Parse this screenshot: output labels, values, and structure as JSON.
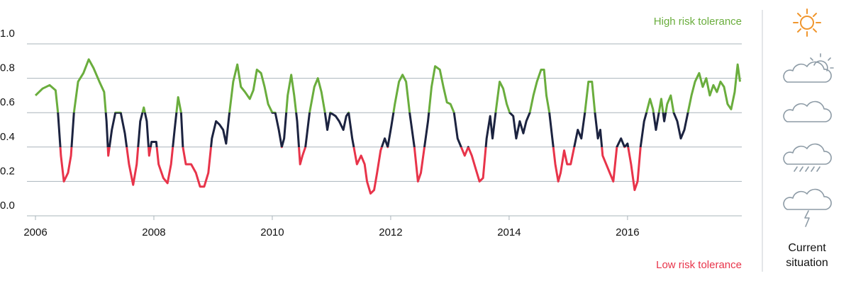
{
  "chart_data": {
    "type": "line",
    "x": [
      2006,
      2006.12,
      2006.24,
      2006.34,
      2006.38,
      2006.43,
      2006.48,
      2006.55,
      2006.6,
      2006.65,
      2006.72,
      2006.81,
      2006.9,
      2006.98,
      2007.08,
      2007.16,
      2007.2,
      2007.23,
      2007.29,
      2007.35,
      2007.44,
      2007.51,
      2007.58,
      2007.65,
      2007.71,
      2007.77,
      2007.83,
      2007.88,
      2007.92,
      2007.96,
      2008.04,
      2008.08,
      2008.16,
      2008.23,
      2008.29,
      2008.35,
      2008.41,
      2008.46,
      2008.49,
      2008.54,
      2008.63,
      2008.71,
      2008.78,
      2008.85,
      2008.92,
      2008.98,
      2009.05,
      2009.11,
      2009.17,
      2009.22,
      2009.27,
      2009.34,
      2009.41,
      2009.47,
      2009.54,
      2009.62,
      2009.68,
      2009.74,
      2009.81,
      2009.87,
      2009.93,
      2010,
      2010.05,
      2010.11,
      2010.16,
      2010.2,
      2010.26,
      2010.32,
      2010.37,
      2010.42,
      2010.47,
      2010.51,
      2010.56,
      2010.63,
      2010.71,
      2010.77,
      2010.83,
      2010.89,
      2010.93,
      2010.98,
      2011.07,
      2011.13,
      2011.2,
      2011.25,
      2011.29,
      2011.35,
      2011.43,
      2011.5,
      2011.56,
      2011.6,
      2011.66,
      2011.72,
      2011.77,
      2011.83,
      2011.9,
      2011.95,
      2012.01,
      2012.07,
      2012.14,
      2012.2,
      2012.26,
      2012.32,
      2012.4,
      2012.46,
      2012.51,
      2012.57,
      2012.63,
      2012.69,
      2012.75,
      2012.83,
      2012.89,
      2012.95,
      2013.01,
      2013.07,
      2013.13,
      2013.19,
      2013.25,
      2013.31,
      2013.37,
      2013.43,
      2013.5,
      2013.56,
      2013.62,
      2013.68,
      2013.72,
      2013.78,
      2013.84,
      2013.9,
      2013.96,
      2014.01,
      2014.07,
      2014.12,
      2014.18,
      2014.24,
      2014.29,
      2014.35,
      2014.41,
      2014.47,
      2014.54,
      2014.59,
      2014.63,
      2014.68,
      2014.73,
      2014.78,
      2014.83,
      2014.87,
      2014.93,
      2014.98,
      2015.04,
      2015.1,
      2015.16,
      2015.22,
      2015.28,
      2015.34,
      2015.4,
      2015.45,
      2015.5,
      2015.54,
      2015.58,
      2015.64,
      2015.7,
      2015.76,
      2015.82,
      2015.89,
      2015.95,
      2016,
      2016.06,
      2016.12,
      2016.17,
      2016.22,
      2016.28,
      2016.32,
      2016.38,
      2016.43,
      2016.48,
      2016.53,
      2016.57,
      2016.62,
      2016.67,
      2016.73,
      2016.78,
      2016.84,
      2016.9,
      2016.96,
      2017.02,
      2017.08,
      2017.14,
      2017.21,
      2017.27,
      2017.33,
      2017.39,
      2017.45,
      2017.51,
      2017.57,
      2017.63,
      2017.69,
      2017.75,
      2017.81,
      2017.86,
      2017.9
    ],
    "values": [
      0.7,
      0.74,
      0.76,
      0.73,
      0.6,
      0.35,
      0.2,
      0.25,
      0.35,
      0.6,
      0.78,
      0.83,
      0.91,
      0.86,
      0.78,
      0.72,
      0.55,
      0.35,
      0.5,
      0.6,
      0.6,
      0.48,
      0.3,
      0.18,
      0.3,
      0.55,
      0.63,
      0.55,
      0.35,
      0.43,
      0.43,
      0.3,
      0.22,
      0.19,
      0.3,
      0.5,
      0.69,
      0.6,
      0.4,
      0.3,
      0.3,
      0.25,
      0.17,
      0.17,
      0.25,
      0.45,
      0.55,
      0.53,
      0.5,
      0.42,
      0.58,
      0.78,
      0.88,
      0.75,
      0.72,
      0.68,
      0.73,
      0.85,
      0.83,
      0.75,
      0.65,
      0.6,
      0.6,
      0.5,
      0.4,
      0.45,
      0.7,
      0.82,
      0.7,
      0.55,
      0.3,
      0.35,
      0.4,
      0.6,
      0.75,
      0.8,
      0.72,
      0.6,
      0.5,
      0.6,
      0.58,
      0.55,
      0.5,
      0.58,
      0.6,
      0.45,
      0.3,
      0.35,
      0.3,
      0.2,
      0.13,
      0.15,
      0.25,
      0.38,
      0.45,
      0.4,
      0.52,
      0.65,
      0.78,
      0.82,
      0.78,
      0.6,
      0.4,
      0.2,
      0.25,
      0.4,
      0.55,
      0.75,
      0.87,
      0.85,
      0.75,
      0.66,
      0.65,
      0.6,
      0.45,
      0.4,
      0.35,
      0.4,
      0.35,
      0.28,
      0.2,
      0.22,
      0.45,
      0.58,
      0.45,
      0.62,
      0.78,
      0.74,
      0.65,
      0.6,
      0.58,
      0.45,
      0.55,
      0.48,
      0.55,
      0.6,
      0.7,
      0.78,
      0.85,
      0.85,
      0.7,
      0.6,
      0.45,
      0.3,
      0.2,
      0.25,
      0.38,
      0.3,
      0.3,
      0.4,
      0.5,
      0.45,
      0.6,
      0.78,
      0.78,
      0.6,
      0.45,
      0.5,
      0.35,
      0.3,
      0.25,
      0.2,
      0.4,
      0.45,
      0.4,
      0.42,
      0.3,
      0.15,
      0.2,
      0.4,
      0.55,
      0.6,
      0.68,
      0.62,
      0.5,
      0.6,
      0.68,
      0.55,
      0.65,
      0.7,
      0.6,
      0.55,
      0.45,
      0.5,
      0.6,
      0.7,
      0.78,
      0.83,
      0.75,
      0.8,
      0.7,
      0.76,
      0.72,
      0.78,
      0.75,
      0.65,
      0.62,
      0.72,
      0.88,
      0.78
    ],
    "color_bands": [
      {
        "min": 0.6,
        "color": "#6aad3d"
      },
      {
        "min": 0.4,
        "color": "#1c2340"
      },
      {
        "min": 0.0,
        "color": "#e8344a"
      }
    ],
    "xlim": [
      2006,
      2017.93
    ],
    "ylim": [
      0,
      1.0
    ],
    "xticks": [
      2006,
      2008,
      2010,
      2012,
      2014,
      2016
    ],
    "yticks": [
      {
        "value": 0,
        "label": "0.0"
      },
      {
        "value": 0.2,
        "label": "0.2"
      },
      {
        "value": 0.4,
        "label": "0.4"
      },
      {
        "value": 0.6,
        "label": "0.6"
      },
      {
        "value": 0.8,
        "label": "0.8"
      },
      {
        "value": 1.0,
        "label": "1.0"
      }
    ],
    "grid": true,
    "annotations": [
      {
        "text": "High risk tolerance",
        "color": "#6aad3d"
      },
      {
        "text": "Low risk tolerance",
        "color": "#e8344a"
      }
    ],
    "side_label": "Current situation"
  }
}
